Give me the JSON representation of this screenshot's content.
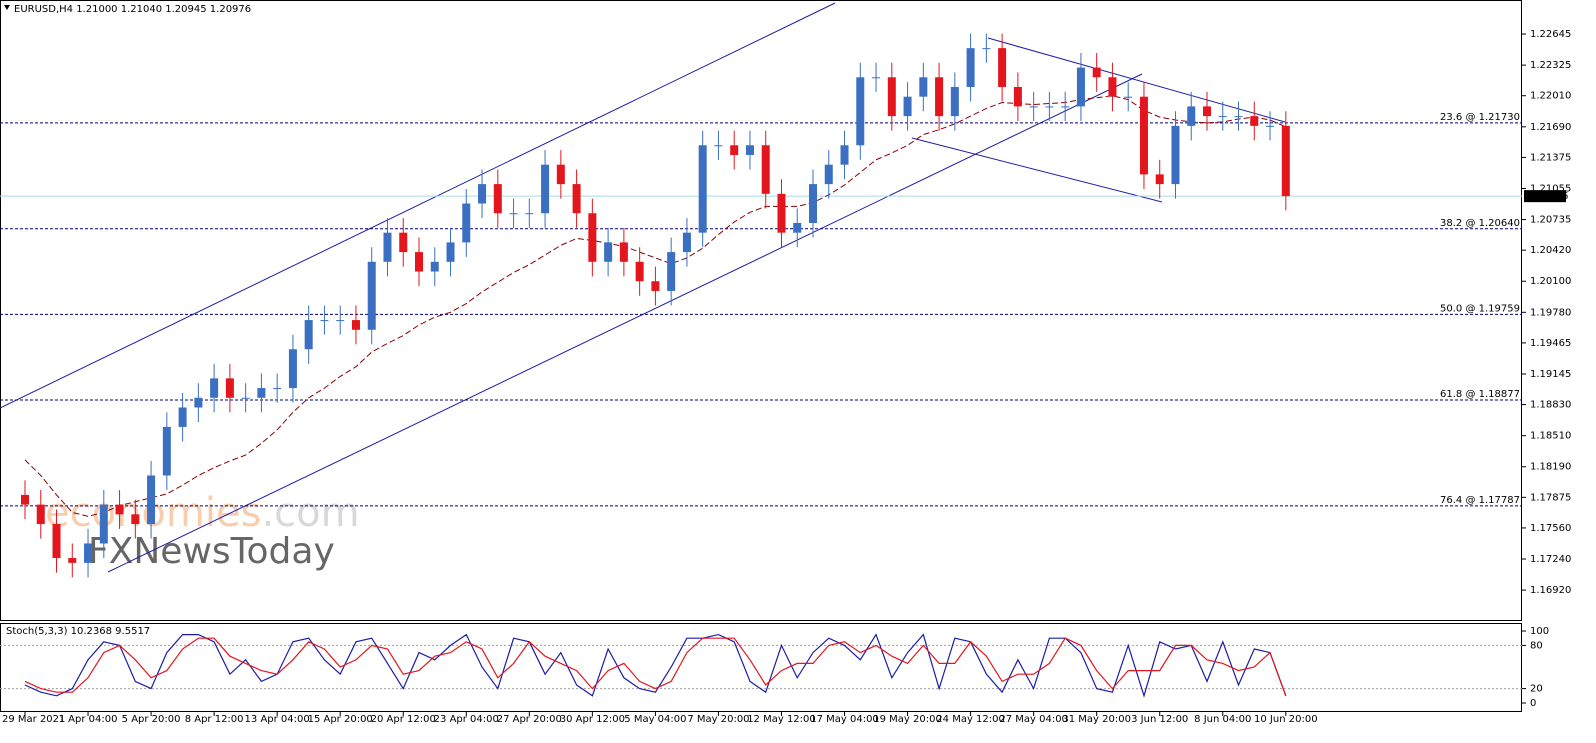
{
  "chart_data": [
    {
      "type": "candlestick",
      "title": "EURUSD,H4  1.21000 1.21040 1.20945 1.20976",
      "categories": [
        "29 Mar 2021",
        null,
        null,
        null,
        "1 Apr 04:00",
        null,
        null,
        null,
        "5 Apr 20:00",
        null,
        null,
        null,
        "8 Apr 12:00",
        null,
        null,
        null,
        "13 Apr 04:00",
        null,
        null,
        null,
        "15 Apr 20:00",
        null,
        null,
        null,
        "20 Apr 12:00",
        null,
        null,
        null,
        "23 Apr 04:00",
        null,
        null,
        null,
        "27 Apr 20:00",
        null,
        null,
        null,
        "30 Apr 12:00",
        null,
        null,
        null,
        "5 May 04:00",
        null,
        null,
        null,
        "7 May 20:00",
        null,
        null,
        null,
        "12 May 12:00",
        null,
        null,
        null,
        "17 May 04:00",
        null,
        null,
        null,
        "19 May 20:00",
        null,
        null,
        null,
        "24 May 12:00",
        null,
        null,
        null,
        "27 May 04:00",
        null,
        null,
        null,
        "31 May 20:00",
        null,
        null,
        null,
        "3 Jun 12:00",
        null,
        null,
        null,
        "8 Jun 04:00",
        null,
        null,
        null,
        "10 Jun 20:00"
      ],
      "open": [
        1.179,
        1.178,
        1.176,
        1.1725,
        1.172,
        1.174,
        1.178,
        1.177,
        1.176,
        1.181,
        1.186,
        1.188,
        1.189,
        1.191,
        1.189,
        1.189,
        1.19,
        1.19,
        1.194,
        1.197,
        1.197,
        1.197,
        1.196,
        1.203,
        1.206,
        1.204,
        1.202,
        1.203,
        1.205,
        1.209,
        1.211,
        1.208,
        1.208,
        1.208,
        1.213,
        1.211,
        1.208,
        1.203,
        1.205,
        1.203,
        1.201,
        1.2,
        1.204,
        1.206,
        1.215,
        1.215,
        1.214,
        1.215,
        1.21,
        1.206,
        1.207,
        1.211,
        1.213,
        1.215,
        1.222,
        1.222,
        1.218,
        1.22,
        1.222,
        1.218,
        1.221,
        1.225,
        1.225,
        1.221,
        1.219,
        1.219,
        1.219,
        1.219,
        1.223,
        1.222,
        1.22,
        1.22,
        1.212,
        1.211,
        1.217,
        1.219,
        1.218,
        1.218,
        1.218,
        1.217,
        1.217
      ],
      "high": [
        1.1805,
        1.1795,
        1.1775,
        1.174,
        1.1755,
        1.1795,
        1.1795,
        1.1785,
        1.1825,
        1.1875,
        1.1895,
        1.1905,
        1.1925,
        1.1925,
        1.1905,
        1.1915,
        1.1915,
        1.1955,
        1.1985,
        1.1985,
        1.1985,
        1.1985,
        1.2045,
        1.2075,
        1.2075,
        1.2055,
        1.2045,
        1.2065,
        1.2105,
        1.2125,
        1.2125,
        1.2095,
        1.2095,
        1.2145,
        1.2145,
        1.2125,
        1.2095,
        1.2065,
        1.2065,
        1.2045,
        1.2025,
        1.2055,
        1.2075,
        1.2165,
        1.2165,
        1.2165,
        1.2165,
        1.2165,
        1.2115,
        1.2085,
        1.2125,
        1.2145,
        1.2165,
        1.2235,
        1.2235,
        1.2235,
        1.2215,
        1.2235,
        1.2235,
        1.2225,
        1.2265,
        1.2265,
        1.2265,
        1.2225,
        1.2205,
        1.2205,
        1.2205,
        1.2245,
        1.2245,
        1.2235,
        1.2215,
        1.2215,
        1.2135,
        1.2185,
        1.2205,
        1.2205,
        1.2195,
        1.2195,
        1.2195,
        1.2185,
        1.2185
      ],
      "low": [
        1.1765,
        1.1745,
        1.171,
        1.1705,
        1.1705,
        1.1725,
        1.1755,
        1.1745,
        1.1745,
        1.1795,
        1.1845,
        1.1865,
        1.1875,
        1.1875,
        1.1875,
        1.1875,
        1.1885,
        1.1885,
        1.1925,
        1.1955,
        1.1955,
        1.1945,
        1.1945,
        1.2015,
        1.2025,
        1.2005,
        1.2005,
        1.2015,
        1.2035,
        1.2075,
        1.2065,
        1.2065,
        1.2065,
        1.2065,
        1.2095,
        1.2065,
        1.2015,
        1.2015,
        1.2015,
        1.1995,
        1.1985,
        1.1985,
        1.2025,
        1.2045,
        1.2135,
        1.2125,
        1.2125,
        1.2085,
        1.2045,
        1.2045,
        1.2055,
        1.2095,
        1.2115,
        1.2135,
        1.2205,
        1.2165,
        1.2165,
        1.2185,
        1.2165,
        1.2165,
        1.2195,
        1.2235,
        1.2195,
        1.2175,
        1.2175,
        1.2175,
        1.2175,
        1.2175,
        1.2205,
        1.2185,
        1.2185,
        1.2105,
        1.2095,
        1.2095,
        1.2155,
        1.2165,
        1.2165,
        1.2165,
        1.2155,
        1.2155,
        1.2083
      ],
      "close": [
        1.178,
        1.176,
        1.1725,
        1.172,
        1.174,
        1.178,
        1.177,
        1.176,
        1.181,
        1.186,
        1.188,
        1.189,
        1.191,
        1.189,
        1.189,
        1.19,
        1.19,
        1.194,
        1.197,
        1.197,
        1.197,
        1.196,
        1.203,
        1.206,
        1.204,
        1.202,
        1.203,
        1.205,
        1.209,
        1.211,
        1.208,
        1.208,
        1.208,
        1.213,
        1.211,
        1.208,
        1.203,
        1.205,
        1.203,
        1.201,
        1.2,
        1.204,
        1.206,
        1.215,
        1.215,
        1.214,
        1.215,
        1.21,
        1.206,
        1.207,
        1.211,
        1.213,
        1.215,
        1.222,
        1.222,
        1.218,
        1.22,
        1.222,
        1.218,
        1.221,
        1.225,
        1.225,
        1.221,
        1.219,
        1.219,
        1.219,
        1.219,
        1.223,
        1.222,
        1.22,
        1.22,
        1.212,
        1.211,
        1.217,
        1.219,
        1.218,
        1.218,
        1.218,
        1.217,
        1.217,
        1.20976
      ],
      "up_color": "#3a6fc2",
      "down_color": "#e3161e",
      "ma": {
        "color": "#8b0000",
        "values": [
          1.1826,
          1.181,
          1.179,
          1.1772,
          1.1768,
          1.1772,
          1.1779,
          1.1783,
          1.1787,
          1.1791,
          1.18,
          1.181,
          1.1818,
          1.1825,
          1.1831,
          1.1843,
          1.1857,
          1.1875,
          1.189,
          1.19,
          1.1912,
          1.1922,
          1.1937,
          1.1946,
          1.1954,
          1.1965,
          1.1973,
          1.1978,
          1.1987,
          1.1999,
          1.2009,
          1.2019,
          1.2027,
          1.2037,
          1.2047,
          1.2054,
          1.2052,
          1.2049,
          1.2046,
          1.204,
          1.2034,
          1.2028,
          1.2034,
          1.2044,
          1.2058,
          1.2071,
          1.2081,
          1.2087,
          1.2087,
          1.2087,
          1.2091,
          1.2099,
          1.2109,
          1.2122,
          1.2135,
          1.2142,
          1.215,
          1.2161,
          1.2166,
          1.2172,
          1.218,
          1.2188,
          1.2194,
          1.2193,
          1.2192,
          1.2193,
          1.2194,
          1.2197,
          1.2199,
          1.2201,
          1.2197,
          1.2186,
          1.2179,
          1.2176,
          1.2174,
          1.2173,
          1.2174,
          1.2177,
          1.2179,
          1.2176,
          1.2169
        ]
      },
      "ylim": [
        1.16612,
        1.22975
      ],
      "yticks": [
        1.22645,
        1.22325,
        {
          "value": 1.2201,
          "label": "1.22010"
        },
        {
          "value": 1.2169,
          "label": "1.21690"
        },
        1.21375,
        1.21055,
        1.20735,
        {
          "value": 1.2042,
          "label": "1.20420"
        },
        {
          "value": 1.201,
          "label": "1.20100"
        },
        {
          "value": 1.1978,
          "label": "1.19780"
        },
        1.19465,
        1.19145,
        {
          "value": 1.1883,
          "label": "1.18830"
        },
        {
          "value": 1.1851,
          "label": "1.18510"
        },
        {
          "value": 1.1819,
          "label": "1.18190"
        },
        1.17875,
        {
          "value": 1.1756,
          "label": "1.17560"
        },
        {
          "value": 1.1724,
          "label": "1.17240"
        },
        {
          "value": 1.1692,
          "label": "1.16920"
        }
      ],
      "levels": [
        {
          "value": 1.2173,
          "label": "23.6 @ 1.21730"
        },
        {
          "value": 1.2064,
          "label": "38.2 @ 1.20640"
        },
        {
          "value": 1.19759,
          "label": "50.0 @ 1.19759"
        },
        {
          "value": 1.18877,
          "label": "61.8 @ 1.18877"
        },
        {
          "value": 1.17787,
          "label": "76.4 @ 1.17787"
        }
      ],
      "current_price": 1.20976,
      "watermark": [
        "economies",
        ".com",
        "FXNewsToday"
      ],
      "grid": false
    },
    {
      "type": "line",
      "title": "Stoch(5,3,3) 10.2368 9.5517",
      "series": [
        {
          "color": "#1c1ca8",
          "values": [
            25,
            15,
            10,
            20,
            60,
            85,
            80,
            30,
            20,
            70,
            95,
            95,
            85,
            40,
            60,
            30,
            40,
            85,
            90,
            60,
            40,
            85,
            90,
            55,
            20,
            70,
            60,
            80,
            95,
            50,
            20,
            90,
            85,
            40,
            70,
            25,
            10,
            75,
            35,
            20,
            15,
            50,
            90,
            90,
            95,
            85,
            30,
            15,
            80,
            35,
            70,
            90,
            80,
            60,
            95,
            35,
            70,
            95,
            20,
            90,
            85,
            40,
            15,
            60,
            20,
            90,
            90,
            70,
            20,
            15,
            80,
            10,
            85,
            75,
            80,
            30,
            85,
            25,
            75,
            70,
            10.2368
          ]
        },
        {
          "color": "#e3161e",
          "values": [
            30,
            20,
            15,
            15,
            35,
            70,
            80,
            60,
            35,
            45,
            75,
            90,
            90,
            65,
            55,
            45,
            40,
            60,
            85,
            75,
            50,
            60,
            80,
            75,
            40,
            45,
            65,
            70,
            85,
            75,
            35,
            55,
            85,
            65,
            55,
            45,
            20,
            45,
            55,
            30,
            20,
            30,
            70,
            90,
            90,
            90,
            60,
            25,
            45,
            55,
            55,
            80,
            85,
            70,
            80,
            65,
            55,
            80,
            55,
            55,
            85,
            65,
            30,
            40,
            40,
            55,
            90,
            80,
            45,
            20,
            45,
            45,
            45,
            80,
            80,
            60,
            55,
            45,
            50,
            70,
            9.5517
          ]
        }
      ],
      "ylim": [
        0,
        100
      ],
      "yticks": [
        100,
        80,
        20,
        0
      ],
      "levels": [
        80,
        20
      ]
    }
  ]
}
